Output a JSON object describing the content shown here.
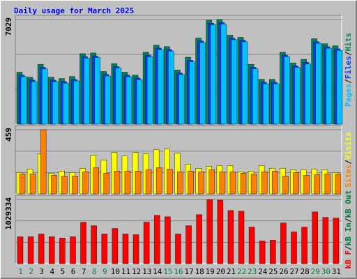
{
  "title": "Daily usage for March 2025",
  "separator": "/",
  "chart_data": [
    {
      "type": "bar",
      "ylim": [
        0,
        7029
      ],
      "yticks": [
        7029
      ],
      "series": [
        {
          "name": "Hits",
          "color": "#00805c",
          "values": [
            3491,
            3156,
            4017,
            3156,
            3060,
            3204,
            4734,
            4782,
            3538,
            4064,
            3491,
            3299,
            4830,
            5308,
            5212,
            3634,
            4495,
            5786,
            6980,
            7029,
            5977,
            5834,
            4017,
            3012,
            3012,
            4830,
            4112,
            4351,
            5738,
            5403,
            5260
          ]
        },
        {
          "name": "Files",
          "color": "#0040ff",
          "values": [
            3291,
            2956,
            3817,
            2956,
            2860,
            3004,
            4534,
            4582,
            3338,
            3864,
            3291,
            3099,
            4630,
            5108,
            5012,
            3434,
            4295,
            5586,
            6780,
            6829,
            5777,
            5634,
            3817,
            2812,
            2812,
            4630,
            3912,
            4151,
            5538,
            5203,
            5060
          ]
        },
        {
          "name": "Pages",
          "color": "#00c0ff",
          "values": [
            3191,
            2856,
            3717,
            2856,
            2760,
            2904,
            4434,
            4482,
            3238,
            3764,
            3191,
            2999,
            4530,
            5008,
            4912,
            3334,
            4195,
            5486,
            6680,
            6729,
            5677,
            5534,
            3717,
            2712,
            2712,
            4530,
            3812,
            4051,
            5438,
            5103,
            4960
          ]
        }
      ]
    },
    {
      "type": "bar",
      "ylim": [
        0,
        459
      ],
      "yticks": [
        459
      ],
      "series": [
        {
          "name": "Visits",
          "color": "#ffff00",
          "values": [
            153,
            178,
            286,
            148,
            163,
            153,
            183,
            276,
            242,
            296,
            271,
            296,
            286,
            316,
            321,
            291,
            212,
            183,
            197,
            202,
            202,
            158,
            163,
            202,
            183,
            183,
            173,
            173,
            178,
            173,
            153
          ]
        },
        {
          "name": "Sites",
          "color": "#ff8000",
          "values": [
            143,
            143,
            459,
            133,
            128,
            128,
            158,
            188,
            148,
            163,
            163,
            163,
            173,
            188,
            178,
            158,
            163,
            158,
            173,
            158,
            158,
            148,
            143,
            158,
            163,
            128,
            153,
            133,
            138,
            143,
            143
          ]
        }
      ]
    },
    {
      "type": "bar",
      "ylim": [
        0,
        1029334
      ],
      "yticks": [
        1029334
      ],
      "series": [
        {
          "name": "kB F",
          "color": "#ff0000",
          "values": [
            431656,
            431656,
            475928,
            431656,
            409520,
            431656,
            664086,
            608746,
            475928,
            564473,
            475928,
            464860,
            664086,
            774767,
            752631,
            475928,
            608746,
            785835,
            1029334,
            1018265,
            852244,
            841176,
            586609,
            365247,
            376315,
            653018,
            509133,
            586609,
            830108,
            741563,
            730495
          ]
        }
      ],
      "extra_legend": [
        {
          "name": "kB In",
          "color": "#008040"
        },
        {
          "name": "kB Out",
          "color": "#008040"
        }
      ],
      "categories": [
        "1",
        "2",
        "3",
        "4",
        "5",
        "6",
        "7",
        "8",
        "9",
        "10",
        "11",
        "12",
        "13",
        "14",
        "15",
        "16",
        "17",
        "18",
        "19",
        "20",
        "21",
        "22",
        "23",
        "24",
        "25",
        "26",
        "27",
        "28",
        "29",
        "30",
        "31"
      ],
      "highlight_categories": [
        "1",
        "2",
        "8",
        "9",
        "15",
        "16",
        "22",
        "23",
        "29",
        "30"
      ],
      "highlight_color": "#008040"
    }
  ]
}
